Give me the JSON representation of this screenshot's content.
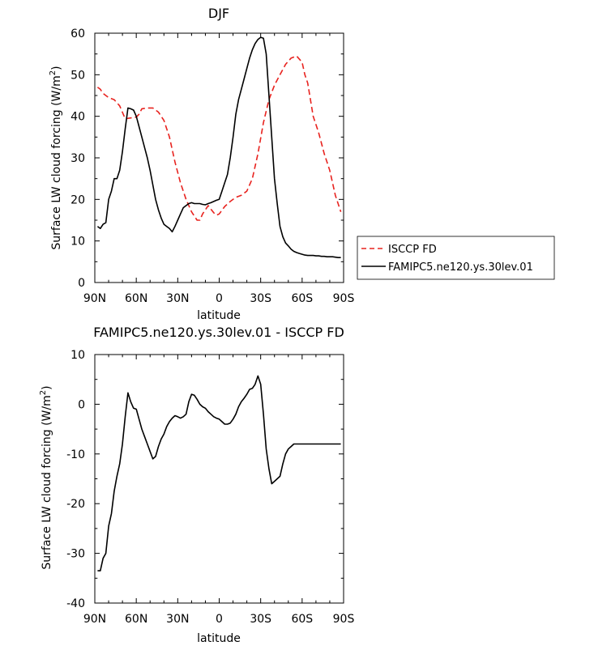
{
  "chart_data": [
    {
      "type": "line",
      "title": "DJF",
      "xlabel": "latitude",
      "ylabel": "Surface LW cloud forcing (W/m²)",
      "ylabel_parts": [
        "Surface LW cloud forcing (W/m",
        "2",
        ")"
      ],
      "x_ticks": [
        {
          "value": -90,
          "label": "90N"
        },
        {
          "value": -60,
          "label": "60N"
        },
        {
          "value": -30,
          "label": "30N"
        },
        {
          "value": 0,
          "label": "0"
        },
        {
          "value": 30,
          "label": "30S"
        },
        {
          "value": 60,
          "label": "60S"
        },
        {
          "value": 90,
          "label": "90S"
        }
      ],
      "xlim": [
        -90,
        90
      ],
      "ylim": [
        0,
        60
      ],
      "y_ticks": [
        0,
        10,
        20,
        30,
        40,
        50,
        60
      ],
      "legend": "right",
      "series": [
        {
          "name": "ISCCP FD",
          "color": "#e8231f",
          "dash": "dashed",
          "x": [
            -88,
            -86,
            -84,
            -80,
            -76,
            -72,
            -68,
            -64,
            -60,
            -58,
            -56,
            -52,
            -48,
            -44,
            -40,
            -36,
            -32,
            -28,
            -24,
            -20,
            -16,
            -14,
            -12,
            -8,
            -4,
            -2,
            0,
            4,
            8,
            12,
            16,
            20,
            24,
            28,
            32,
            36,
            40,
            44,
            48,
            52,
            56,
            60,
            62,
            64,
            68,
            72,
            76,
            80,
            84,
            88
          ],
          "values": [
            47,
            46.5,
            45.5,
            44.5,
            44,
            42.5,
            39.4,
            39.6,
            39.8,
            40.5,
            41.8,
            42,
            42,
            41,
            39,
            35,
            29,
            24,
            20,
            17,
            15,
            15,
            16.5,
            18.5,
            16.8,
            16.2,
            16.5,
            18.3,
            19.5,
            20.5,
            21,
            22,
            25,
            31,
            38.5,
            44,
            47.5,
            50,
            52.5,
            54,
            54.5,
            53,
            50,
            48,
            40,
            36,
            31,
            27,
            21,
            17
          ]
        },
        {
          "name": "FAMIPC5.ne120.ys.30lev.01",
          "color": "#000000",
          "dash": "solid",
          "x": [
            -88,
            -86,
            -84,
            -82,
            -80,
            -78,
            -76,
            -74,
            -72,
            -70,
            -68,
            -66,
            -64,
            -62,
            -60,
            -58,
            -56,
            -54,
            -52,
            -50,
            -48,
            -46,
            -44,
            -42,
            -40,
            -38,
            -36,
            -34,
            -32,
            -30,
            -28,
            -26,
            -24,
            -22,
            -20,
            -18,
            -16,
            -14,
            -12,
            -10,
            -8,
            -6,
            -4,
            -2,
            0,
            2,
            4,
            6,
            8,
            10,
            12,
            14,
            16,
            18,
            20,
            22,
            24,
            26,
            28,
            30,
            32,
            34,
            36,
            38,
            40,
            42,
            44,
            46,
            48,
            50,
            52,
            54,
            56,
            58,
            60,
            62,
            64,
            66,
            68,
            70,
            72,
            74,
            76,
            78,
            80,
            82,
            84,
            86,
            88
          ],
          "values": [
            13.5,
            13,
            14,
            14.4,
            20,
            22,
            25,
            25,
            27,
            31.5,
            37,
            42,
            41.8,
            41.5,
            40,
            37.5,
            35,
            32.5,
            30,
            27,
            23.5,
            20,
            17.5,
            15.5,
            14,
            13.5,
            13,
            12.2,
            13.5,
            15,
            16.5,
            18,
            18.5,
            19,
            19.2,
            19,
            19,
            19,
            18.8,
            18.7,
            19,
            19.2,
            19.5,
            19.8,
            20,
            22,
            24,
            26,
            30,
            35,
            40.5,
            44,
            46.5,
            49,
            51.5,
            54,
            56,
            57.5,
            58.5,
            59,
            58.8,
            55,
            45,
            35,
            25,
            19,
            13.5,
            11,
            9.5,
            8.8,
            8,
            7.5,
            7.2,
            7,
            6.8,
            6.6,
            6.5,
            6.5,
            6.5,
            6.4,
            6.4,
            6.3,
            6.3,
            6.2,
            6.2,
            6.2,
            6.1,
            6,
            6
          ]
        }
      ]
    },
    {
      "type": "line",
      "title": "FAMIPC5.ne120.ys.30lev.01 - ISCCP FD",
      "xlabel": "latitude",
      "ylabel": "Surface LW cloud forcing (W/m²)",
      "ylabel_parts": [
        "Surface LW cloud forcing (W/m",
        "2",
        ")"
      ],
      "x_ticks": [
        {
          "value": -90,
          "label": "90N"
        },
        {
          "value": -60,
          "label": "60N"
        },
        {
          "value": -30,
          "label": "30N"
        },
        {
          "value": 0,
          "label": "0"
        },
        {
          "value": 30,
          "label": "30S"
        },
        {
          "value": 60,
          "label": "60S"
        },
        {
          "value": 90,
          "label": "90S"
        }
      ],
      "xlim": [
        -90,
        90
      ],
      "ylim": [
        -40,
        10
      ],
      "y_ticks": [
        -40,
        -30,
        -20,
        -10,
        0,
        10
      ],
      "series": [
        {
          "color": "#000000",
          "dash": "solid",
          "x": [
            -88,
            -86,
            -84,
            -82,
            -80,
            -78,
            -76,
            -74,
            -72,
            -70,
            -68,
            -66,
            -64,
            -62,
            -60,
            -58,
            -56,
            -54,
            -52,
            -50,
            -48,
            -46,
            -44,
            -42,
            -40,
            -38,
            -36,
            -34,
            -32,
            -30,
            -28,
            -26,
            -24,
            -22,
            -20,
            -18,
            -16,
            -14,
            -12,
            -10,
            -8,
            -6,
            -4,
            -2,
            0,
            2,
            4,
            6,
            8,
            10,
            12,
            14,
            16,
            18,
            20,
            22,
            24,
            26,
            28,
            30,
            32,
            34,
            36,
            38,
            40,
            42,
            44,
            46,
            48,
            50,
            52,
            54,
            56,
            58,
            60,
            62,
            64,
            66,
            68,
            70,
            72,
            74,
            76,
            78,
            80,
            82,
            84,
            86,
            88
          ],
          "values": [
            -33.5,
            -33.5,
            -31,
            -30,
            -24.5,
            -22,
            -17.5,
            -14.5,
            -12,
            -8,
            -2.5,
            2.3,
            0.5,
            -0.8,
            -1,
            -3,
            -5,
            -6.5,
            -8,
            -9.5,
            -11,
            -10.5,
            -8.5,
            -7,
            -6,
            -4.5,
            -3.5,
            -2.8,
            -2.3,
            -2.5,
            -2.8,
            -2.5,
            -2,
            0.5,
            2,
            1.8,
            1,
            0,
            -0.5,
            -0.8,
            -1.5,
            -2,
            -2.5,
            -2.8,
            -3,
            -3.5,
            -4,
            -4,
            -3.8,
            -3,
            -2,
            -0.5,
            0.5,
            1.2,
            2,
            3,
            3.2,
            4,
            5.7,
            4,
            -2,
            -9,
            -13,
            -16,
            -15.5,
            -15,
            -14.5,
            -12,
            -10,
            -9,
            -8.5,
            -8,
            -8,
            -8,
            -8,
            -8,
            -8,
            -8,
            -8,
            -8,
            -8,
            -8,
            -8,
            -8,
            -8,
            -8,
            -8,
            -8,
            -8
          ]
        }
      ]
    }
  ]
}
